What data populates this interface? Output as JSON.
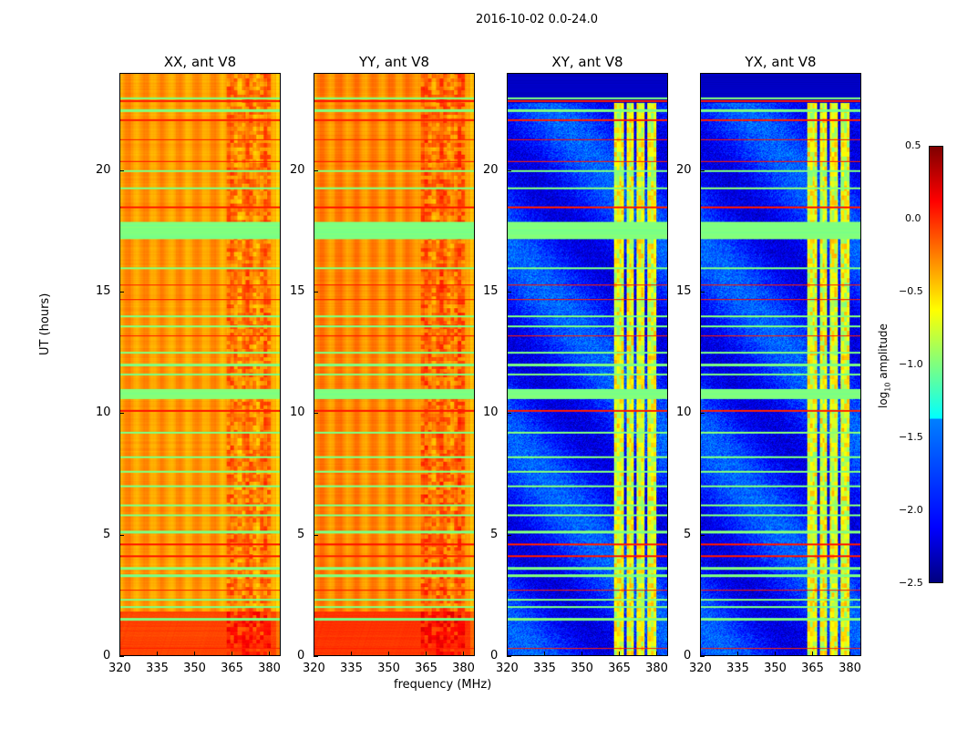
{
  "chart_data": {
    "type": "heatmap",
    "suptitle": "2016-10-02 0.0-24.0",
    "xlabel": "frequency (MHz)",
    "ylabel": "UT (hours)",
    "xlim": [
      320,
      384.7
    ],
    "ylim": [
      0,
      24
    ],
    "xticks": [
      "320",
      "335",
      "350",
      "365",
      "380"
    ],
    "xtick_values": [
      320,
      335,
      350,
      365,
      380
    ],
    "yticks": [
      "0",
      "5",
      "10",
      "15",
      "20"
    ],
    "ytick_values": [
      0,
      5,
      10,
      15,
      20
    ],
    "colorbar": {
      "label_prefix": "log",
      "label_sub": "10",
      "label_suffix": " amplitude",
      "range": [
        -2.5,
        0.5
      ],
      "ticks": [
        "0.5",
        "0.0",
        "−0.5",
        "−1.0",
        "−1.5",
        "−2.0",
        "−2.5"
      ],
      "tick_values": [
        0.5,
        0.0,
        -0.5,
        -1.0,
        -1.5,
        -2.0,
        -2.5
      ],
      "colormap": "jet"
    },
    "flagged_bands_hours": [
      [
        17.2,
        17.9
      ],
      [
        10.6,
        11.0
      ]
    ],
    "green_line_hours": [
      1.5,
      2.0,
      2.3,
      3.3,
      3.6,
      5.1,
      5.8,
      6.2,
      7.0,
      7.6,
      8.2,
      9.2,
      11.6,
      12.0,
      12.5,
      13.6,
      14.0,
      16.0,
      19.3,
      20.0,
      22.5,
      23.0
    ],
    "red_line_hours": [
      0.3,
      2.7,
      4.1,
      4.6,
      10.1,
      13.2,
      14.7,
      15.3,
      18.5,
      20.4,
      21.3,
      22.1,
      22.9
    ],
    "panels": [
      {
        "title": "XX, ant V8",
        "kind": "parallel",
        "base_level": -0.35,
        "low_ut_level": -0.1
      },
      {
        "title": "YY, ant V8",
        "kind": "parallel",
        "base_level": -0.3,
        "low_ut_level": -0.05
      },
      {
        "title": "XY, ant V8",
        "kind": "cross",
        "base_level": -2.2,
        "band_level": -0.7
      },
      {
        "title": "YX, ant V8",
        "kind": "cross",
        "base_level": -2.2,
        "band_level": -0.7
      }
    ],
    "signal_bands_mhz": [
      [
        363,
        367
      ],
      [
        368,
        371
      ],
      [
        372,
        375.5
      ],
      [
        376.5,
        380
      ]
    ]
  }
}
